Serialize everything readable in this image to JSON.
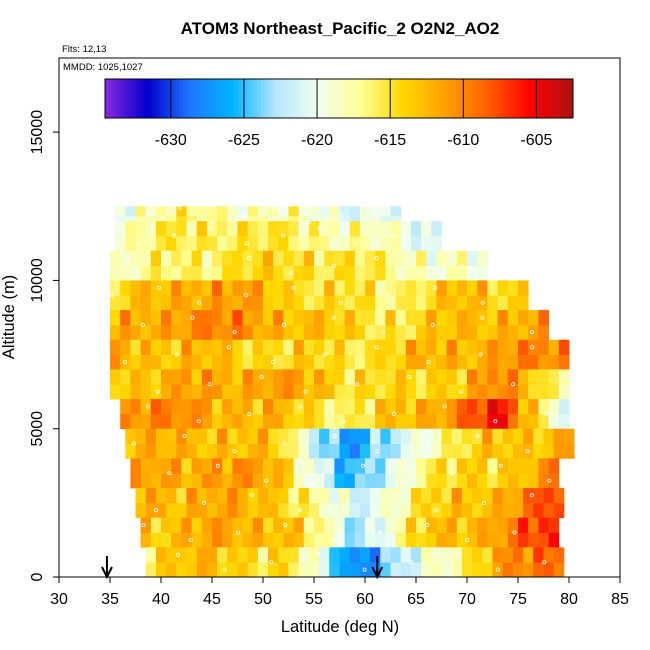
{
  "chart_data": {
    "type": "heatmap",
    "title": "ATOM3 Northeast_Pacific_2 O2N2_AO2",
    "annotations": [
      "Flts: 12,13",
      "MMDD: 1025,1027"
    ],
    "xlabel": "Latitude (deg N)",
    "ylabel": "Altitude (m)",
    "xlim": [
      30,
      85
    ],
    "ylim": [
      0,
      17500
    ],
    "x_ticks": [
      "30",
      "35",
      "40",
      "45",
      "50",
      "55",
      "60",
      "65",
      "70",
      "75",
      "80",
      "85"
    ],
    "y_ticks": [
      "0",
      "5000",
      "10000",
      "15000"
    ],
    "grid": false,
    "colorbar": {
      "placement": "top-inside",
      "range": [
        -634.5,
        -602.5
      ],
      "tick_values": [
        -630,
        -625,
        -620,
        -615,
        -610,
        -605
      ],
      "tick_labels": [
        "-630",
        "-625",
        "-620",
        "-615",
        "-610",
        "-605"
      ],
      "colors": [
        "#8a2be2",
        "#0000cc",
        "#1e78ff",
        "#00b4ff",
        "#b4e6ff",
        "#f0fff0",
        "#ffff96",
        "#ffd700",
        "#ffa000",
        "#ff6000",
        "#ff0000",
        "#aa1414"
      ]
    },
    "latitude_markers": [
      34.7,
      61.2
    ],
    "value_profile": {
      "note_altitudes": [
        500,
        1500,
        2500,
        3500,
        4500,
        5500,
        6500,
        7500,
        8500,
        9500,
        10500,
        11500,
        12200
      ],
      "lat_range": [
        35,
        80
      ],
      "altitude_bands": [
        {
          "alt": 12200,
          "lat": [
            35.5,
            63.5
          ],
          "values": [
            -619,
            -617,
            -617,
            -618,
            -619,
            -620,
            -621
          ]
        },
        {
          "alt": 11500,
          "lat": [
            35.5,
            67
          ],
          "values": [
            -618,
            -616,
            -615,
            -616,
            -617,
            -619,
            -621
          ]
        },
        {
          "alt": 10500,
          "lat": [
            35,
            72
          ],
          "values": [
            -619,
            -616,
            -615,
            -614,
            -616,
            -618,
            -620
          ]
        },
        {
          "alt": 9500,
          "lat": [
            35,
            76
          ],
          "values": [
            -615,
            -611,
            -612,
            -615,
            -616,
            -613,
            -614
          ]
        },
        {
          "alt": 8500,
          "lat": [
            35,
            78
          ],
          "values": [
            -613,
            -610,
            -611,
            -614,
            -615,
            -612,
            -612
          ]
        },
        {
          "alt": 7500,
          "lat": [
            35,
            80
          ],
          "values": [
            -612,
            -613,
            -614,
            -615,
            -613,
            -611,
            -610
          ]
        },
        {
          "alt": 6500,
          "lat": [
            35,
            80
          ],
          "values": [
            -613,
            -612,
            -611,
            -614,
            -615,
            -610,
            -618
          ]
        },
        {
          "alt": 5500,
          "lat": [
            36,
            80
          ],
          "values": [
            -610,
            -611,
            -613,
            -616,
            -612,
            -606,
            -622
          ]
        },
        {
          "alt": 4500,
          "lat": [
            36.5,
            80
          ],
          "values": [
            -613,
            -612,
            -614,
            -628,
            -618,
            -613,
            -612
          ]
        },
        {
          "alt": 3500,
          "lat": [
            37,
            79
          ],
          "values": [
            -612,
            -611,
            -612,
            -627,
            -616,
            -614,
            -610
          ]
        },
        {
          "alt": 2500,
          "lat": [
            37.5,
            79
          ],
          "values": [
            -612,
            -612,
            -613,
            -622,
            -615,
            -612,
            -607
          ]
        },
        {
          "alt": 1500,
          "lat": [
            38,
            79
          ],
          "values": [
            -613,
            -612,
            -612,
            -623,
            -614,
            -611,
            -606
          ]
        },
        {
          "alt": 500,
          "lat": [
            38.5,
            79
          ],
          "values": [
            -614,
            -613,
            -615,
            -628,
            -620,
            -612,
            -608
          ]
        }
      ]
    }
  }
}
